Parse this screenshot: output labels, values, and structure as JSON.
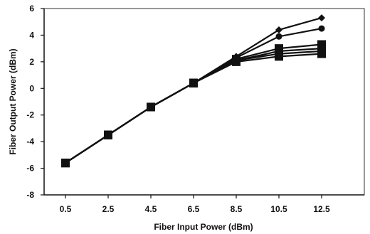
{
  "chart_data": {
    "type": "line",
    "title": "",
    "xlabel": "Fiber Input Power (dBm)",
    "ylabel": "Fiber Output Power (dBm)",
    "x": [
      0.5,
      2.5,
      4.5,
      6.5,
      8.5,
      10.5,
      12.5
    ],
    "x_tick_labels": [
      "0.5",
      "2.5",
      "4.5",
      "6.5",
      "8.5",
      "10.5",
      "12.5"
    ],
    "xlim": [
      -0.5,
      14.5
    ],
    "ylim": [
      -8,
      6
    ],
    "y_ticks": [
      -8,
      -6,
      -4,
      -2,
      0,
      2,
      4,
      6
    ],
    "grid": false,
    "legend": "none",
    "line_color": "#111111",
    "series": [
      {
        "marker": "diamond",
        "values": [
          -5.6,
          -3.5,
          -1.4,
          0.4,
          2.4,
          4.4,
          5.3
        ]
      },
      {
        "marker": "circle",
        "values": [
          -5.6,
          -3.5,
          -1.4,
          0.4,
          2.3,
          3.9,
          4.5
        ]
      },
      {
        "marker": "square",
        "values": [
          -5.6,
          -3.5,
          -1.4,
          0.4,
          2.2,
          3.0,
          3.3
        ]
      },
      {
        "marker": "square",
        "values": [
          -5.6,
          -3.5,
          -1.4,
          0.4,
          2.1,
          2.8,
          3.0
        ]
      },
      {
        "marker": "square",
        "values": [
          -5.6,
          -3.5,
          -1.4,
          0.4,
          2.1,
          2.6,
          2.8
        ]
      },
      {
        "marker": "square",
        "values": [
          -5.6,
          -3.5,
          -1.4,
          0.4,
          2.0,
          2.4,
          2.6
        ]
      }
    ]
  }
}
